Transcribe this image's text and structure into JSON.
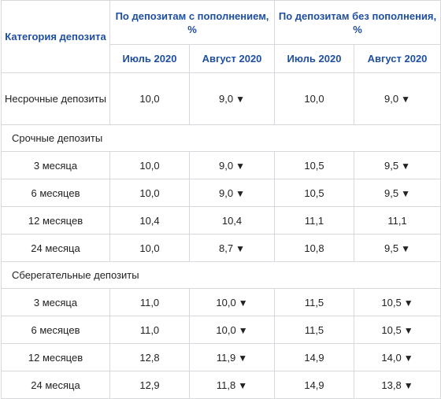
{
  "table": {
    "header": {
      "category": "Категория депозита",
      "group_refill": "По депозитам с пополнением, %",
      "group_no_refill": "По депозитам без пополнения, %",
      "months": [
        "Июль 2020",
        "Август 2020",
        "Июль 2020",
        "Август 2020"
      ]
    },
    "nonterm": {
      "label": "Несрочные депозиты",
      "values": [
        "10,0",
        "9,0",
        "10,0",
        "9,0"
      ],
      "down": [
        false,
        true,
        false,
        true
      ]
    },
    "sections": [
      {
        "title": "Срочные депозиты",
        "rows": [
          {
            "label": "3 месяца",
            "values": [
              "10,0",
              "9,0",
              "10,5",
              "9,5"
            ],
            "down": [
              false,
              true,
              false,
              true
            ]
          },
          {
            "label": "6 месяцев",
            "values": [
              "10,0",
              "9,0",
              "10,5",
              "9,5"
            ],
            "down": [
              false,
              true,
              false,
              true
            ]
          },
          {
            "label": "12 месяцев",
            "values": [
              "10,4",
              "10,4",
              "11,1",
              "11,1"
            ],
            "down": [
              false,
              false,
              false,
              false
            ]
          },
          {
            "label": "24 месяца",
            "values": [
              "10,0",
              "8,7",
              "10,8",
              "9,5"
            ],
            "down": [
              false,
              true,
              false,
              true
            ]
          }
        ]
      },
      {
        "title": "Сберегательные депозиты",
        "rows": [
          {
            "label": "3 месяца",
            "values": [
              "11,0",
              "10,0",
              "11,5",
              "10,5"
            ],
            "down": [
              false,
              true,
              false,
              true
            ]
          },
          {
            "label": "6 месяцев",
            "values": [
              "11,0",
              "10,0",
              "11,5",
              "10,5"
            ],
            "down": [
              false,
              true,
              false,
              true
            ]
          },
          {
            "label": "12 месяцев",
            "values": [
              "12,8",
              "11,9",
              "14,9",
              "14,0"
            ],
            "down": [
              false,
              true,
              false,
              true
            ]
          },
          {
            "label": "24 месяца",
            "values": [
              "12,9",
              "11,8",
              "14,9",
              "13,8"
            ],
            "down": [
              false,
              true,
              false,
              true
            ]
          }
        ]
      }
    ]
  }
}
